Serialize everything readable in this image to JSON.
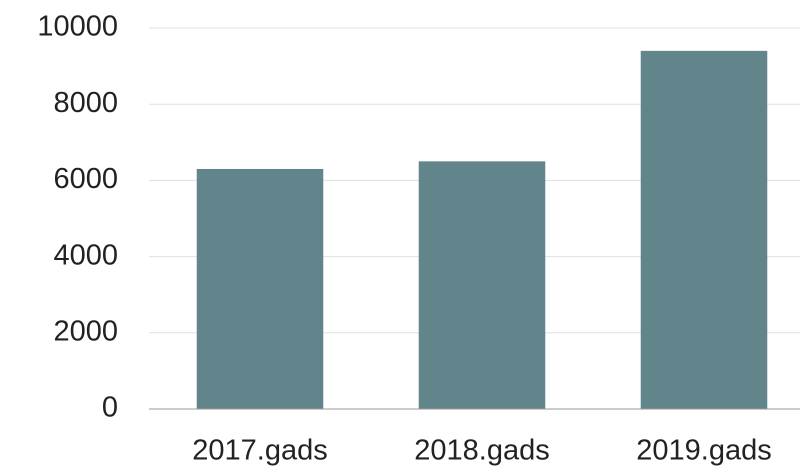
{
  "chart_data": {
    "type": "bar",
    "categories": [
      "2017.gads",
      "2018.gads",
      "2019.gads"
    ],
    "values": [
      6300,
      6500,
      9400
    ],
    "color": "#62858b",
    "ylim": [
      0,
      10000
    ],
    "yticks": [
      0,
      2000,
      4000,
      6000,
      8000,
      10000
    ],
    "grid": true
  }
}
